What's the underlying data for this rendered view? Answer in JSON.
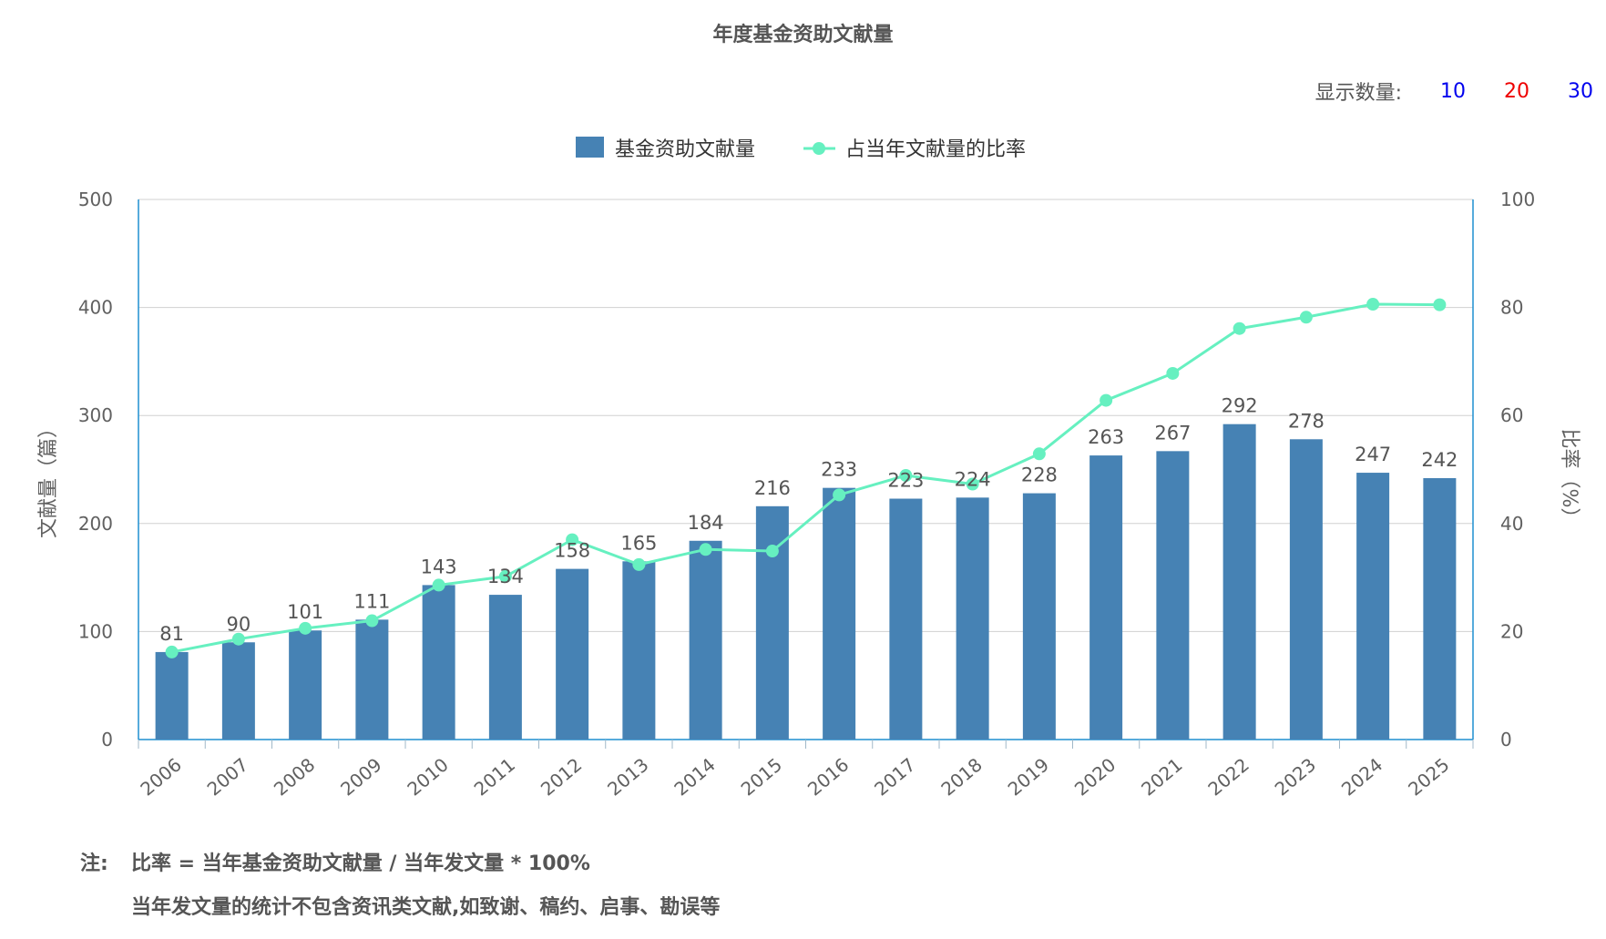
{
  "title": "年度基金资助文献量",
  "display_count": {
    "label": "显示数量:",
    "options": [
      "10",
      "20",
      "30"
    ]
  },
  "legend": {
    "bar_label": "基金资助文献量",
    "line_label": "占当年文献量的比率"
  },
  "colors": {
    "bar": "#4682b4",
    "line": "#66f0c0",
    "axis": "#1f8fd0",
    "grid": "#d0d0d0"
  },
  "chart_data": {
    "type": "bar+line",
    "categories": [
      "2006",
      "2007",
      "2008",
      "2009",
      "2010",
      "2011",
      "2012",
      "2013",
      "2014",
      "2015",
      "2016",
      "2017",
      "2018",
      "2019",
      "2020",
      "2021",
      "2022",
      "2023",
      "2024",
      "2025"
    ],
    "series": [
      {
        "name": "基金资助文献量",
        "type": "bar",
        "axis": "left",
        "values": [
          81,
          90,
          101,
          111,
          143,
          134,
          158,
          165,
          184,
          216,
          233,
          223,
          224,
          228,
          263,
          267,
          292,
          278,
          247,
          242
        ]
      },
      {
        "name": "占当年文献量的比率",
        "type": "line",
        "axis": "right",
        "values": [
          16.2,
          18.6,
          20.6,
          22.0,
          28.6,
          30.2,
          37.0,
          32.4,
          35.2,
          34.9,
          45.3,
          48.9,
          47.3,
          52.9,
          62.8,
          67.8,
          76.1,
          78.2,
          80.6,
          80.5
        ]
      }
    ],
    "ylabel_left": "文献量（篇）",
    "ylabel_right": "比率（%）",
    "ylim_left": [
      0,
      500
    ],
    "ylim_right": [
      0,
      100
    ],
    "yticks_left": [
      "0",
      "100",
      "200",
      "300",
      "400",
      "500"
    ],
    "yticks_right": [
      "0",
      "20",
      "40",
      "60",
      "80",
      "100"
    ],
    "grid": true,
    "legend_position": "top-center"
  },
  "note": {
    "prefix": "注:",
    "line1": "比率 = 当年基金资助文献量 / 当年发文量 * 100%",
    "line2": "当年发文量的统计不包含资讯类文献,如致谢、稿约、启事、勘误等"
  }
}
